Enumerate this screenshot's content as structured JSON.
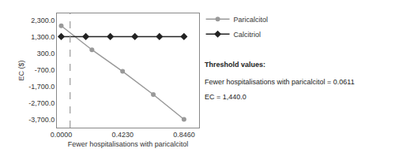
{
  "chart_data": {
    "type": "line",
    "xlabel": "Fewer hospitalisations with paricalcitol",
    "ylabel": "EC ($)",
    "series": [
      {
        "name": "Paricalcitol",
        "color": "#999999",
        "marker": "circle",
        "x": [
          0.0,
          0.2115,
          0.423,
          0.6345,
          0.846
        ],
        "values": [
          1950.0,
          500.0,
          -800.0,
          -2200.0,
          -3700.0
        ]
      },
      {
        "name": "Calcitriol",
        "color": "#222222",
        "marker": "diamond",
        "x": [
          0.0,
          0.1692,
          0.3384,
          0.5076,
          0.6768,
          0.846
        ],
        "values": [
          1300.0,
          1300.0,
          1300.0,
          1300.0,
          1300.0,
          1300.0
        ]
      }
    ],
    "vlines": [
      {
        "x": 0.0611,
        "color": "#999999",
        "line_style": "dashed"
      }
    ],
    "annotations": [
      "Threshold values:",
      "Fewer hospitalisations with paricalcitol = 0.0611",
      "EC = 1,440.0"
    ],
    "xlim": [
      -0.03,
      0.95
    ],
    "xticks": [
      {
        "value": 0.0,
        "label": "0.0000"
      },
      {
        "value": 0.423,
        "label": "0.4230"
      },
      {
        "value": 0.846,
        "label": "0.8460"
      }
    ],
    "ylim": [
      -4200,
      2700
    ],
    "yticks": [
      {
        "value": 2300.0,
        "label": "2,300.0"
      },
      {
        "value": 1300.0,
        "label": "1,300.0"
      },
      {
        "value": 300.0,
        "label": "300.0"
      },
      {
        "value": -700.0,
        "label": "-700.0"
      },
      {
        "value": -1700.0,
        "label": "-1,700.0"
      },
      {
        "value": -2700.0,
        "label": "-2,700.0"
      },
      {
        "value": -3700.0,
        "label": "-3,700.0"
      }
    ],
    "grid": false,
    "legend": "upper right"
  }
}
